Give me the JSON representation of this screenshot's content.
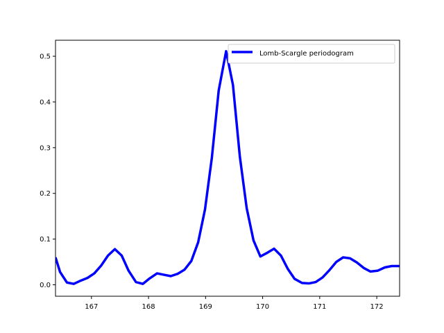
{
  "chart_data": {
    "type": "line",
    "title": "",
    "xlabel": "",
    "ylabel": "",
    "xlim": [
      166.37,
      172.4
    ],
    "ylim": [
      -0.025,
      0.535
    ],
    "grid": false,
    "legend_placement": "upper-right",
    "x_ticks": [
      167,
      168,
      169,
      170,
      171,
      172
    ],
    "y_ticks": [
      0.0,
      0.1,
      0.2,
      0.3,
      0.4,
      0.5
    ],
    "x_tick_labels": [
      "167",
      "168",
      "169",
      "170",
      "171",
      "172"
    ],
    "y_tick_labels": [
      "0.0",
      "0.1",
      "0.2",
      "0.3",
      "0.4",
      "0.5"
    ],
    "series": [
      {
        "name": "Lomb-Scargle periodogram",
        "color": "#0000ff",
        "x": [
          166.37,
          166.45,
          166.57,
          166.69,
          166.81,
          166.93,
          167.05,
          167.17,
          167.29,
          167.41,
          167.53,
          167.65,
          167.78,
          167.9,
          168.02,
          168.15,
          168.27,
          168.39,
          168.51,
          168.63,
          168.75,
          168.87,
          168.99,
          169.11,
          169.23,
          169.36,
          169.48,
          169.6,
          169.72,
          169.84,
          169.96,
          170.08,
          170.2,
          170.32,
          170.44,
          170.56,
          170.69,
          170.81,
          170.93,
          171.05,
          171.17,
          171.29,
          171.41,
          171.53,
          171.65,
          171.77,
          171.89,
          172.02,
          172.14,
          172.26,
          172.4
        ],
        "y": [
          0.06,
          0.028,
          0.005,
          0.002,
          0.009,
          0.015,
          0.025,
          0.042,
          0.064,
          0.078,
          0.064,
          0.031,
          0.006,
          0.002,
          0.014,
          0.025,
          0.022,
          0.019,
          0.024,
          0.033,
          0.052,
          0.093,
          0.165,
          0.278,
          0.425,
          0.511,
          0.437,
          0.281,
          0.168,
          0.097,
          0.062,
          0.07,
          0.079,
          0.064,
          0.035,
          0.013,
          0.004,
          0.003,
          0.006,
          0.016,
          0.032,
          0.05,
          0.06,
          0.058,
          0.049,
          0.037,
          0.029,
          0.031,
          0.038,
          0.041,
          0.041
        ]
      }
    ]
  }
}
